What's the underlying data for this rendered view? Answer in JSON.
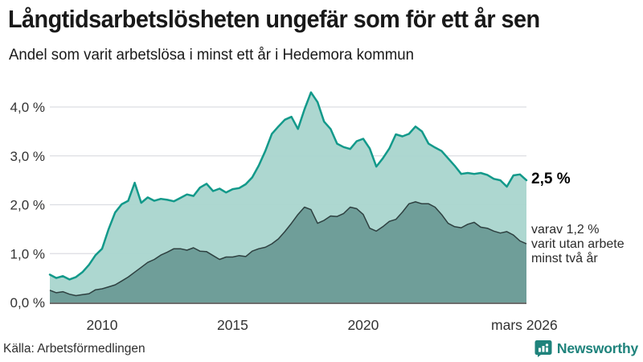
{
  "title": "Långtidsarbetslösheten ungefär som för ett år sen",
  "subtitle": "Andel som varit arbetslösa i minst ett år i Hedemora kommun",
  "source": "Källa: Arbetsförmedlingen",
  "branding": {
    "name": "Newsworthy",
    "icon": "newsworthy-bar-chart-bubble-icon",
    "color": "#1f837c"
  },
  "annotations": {
    "latest_total": "2,5 %",
    "secondary_lines": [
      "varav 1,2 %",
      "varit utan arbete",
      "minst två år"
    ]
  },
  "colors": {
    "total_line": "#12998a",
    "total_fill": "#aad5ce",
    "secondary_line": "#2e4040",
    "secondary_fill": "#6f9e99",
    "gridline": "#dcdde2",
    "baseline": "#3c3c3c",
    "axis_text": "#333333",
    "title_text": "#191919"
  },
  "chart_data": {
    "type": "area",
    "title": "Långtidsarbetslösheten ungefär som för ett år sen",
    "subtitle": "Andel som varit arbetslösa i minst ett år i Hedemora kommun",
    "xlabel": "",
    "ylabel": "",
    "x_unit": "decimal_year",
    "xlim": [
      2008.0,
      2026.25
    ],
    "ylim": [
      0,
      4.5
    ],
    "grid": true,
    "legend": "none",
    "x": [
      2008.0,
      2008.25,
      2008.5,
      2008.75,
      2009.0,
      2009.25,
      2009.5,
      2009.75,
      2010.0,
      2010.25,
      2010.5,
      2010.75,
      2011.0,
      2011.25,
      2011.5,
      2011.75,
      2012.0,
      2012.25,
      2012.5,
      2012.75,
      2013.0,
      2013.25,
      2013.5,
      2013.75,
      2014.0,
      2014.25,
      2014.5,
      2014.75,
      2015.0,
      2015.25,
      2015.5,
      2015.75,
      2016.0,
      2016.25,
      2016.5,
      2016.75,
      2017.0,
      2017.25,
      2017.5,
      2017.75,
      2018.0,
      2018.25,
      2018.5,
      2018.75,
      2019.0,
      2019.25,
      2019.5,
      2019.75,
      2020.0,
      2020.25,
      2020.5,
      2020.75,
      2021.0,
      2021.25,
      2021.5,
      2021.75,
      2022.0,
      2022.25,
      2022.5,
      2022.75,
      2023.0,
      2023.25,
      2023.5,
      2023.75,
      2024.0,
      2024.25,
      2024.5,
      2024.75,
      2025.0,
      2025.25,
      2025.5,
      2025.75,
      2026.0,
      2026.25
    ],
    "series": [
      {
        "name": "Andel som varit arbetslösa i minst ett år",
        "latest_label": "2,5 %",
        "values": [
          0.57,
          0.5,
          0.54,
          0.47,
          0.52,
          0.62,
          0.77,
          0.97,
          1.1,
          1.5,
          1.84,
          2.01,
          2.08,
          2.45,
          2.04,
          2.15,
          2.08,
          2.12,
          2.1,
          2.07,
          2.14,
          2.21,
          2.18,
          2.35,
          2.43,
          2.28,
          2.33,
          2.25,
          2.32,
          2.34,
          2.42,
          2.56,
          2.8,
          3.1,
          3.45,
          3.6,
          3.74,
          3.8,
          3.55,
          3.95,
          4.3,
          4.1,
          3.7,
          3.55,
          3.25,
          3.18,
          3.14,
          3.3,
          3.35,
          3.15,
          2.78,
          2.95,
          3.15,
          3.44,
          3.4,
          3.45,
          3.6,
          3.5,
          3.25,
          3.17,
          3.1,
          2.95,
          2.8,
          2.63,
          2.65,
          2.63,
          2.65,
          2.61,
          2.53,
          2.5,
          2.37,
          2.6,
          2.62,
          2.5
        ]
      },
      {
        "name": "varav utan arbete minst två år",
        "latest_label": "varav 1,2 % varit utan arbete minst två år",
        "values": [
          0.25,
          0.2,
          0.22,
          0.17,
          0.14,
          0.16,
          0.18,
          0.26,
          0.28,
          0.32,
          0.36,
          0.44,
          0.52,
          0.62,
          0.72,
          0.82,
          0.88,
          0.97,
          1.03,
          1.1,
          1.1,
          1.07,
          1.12,
          1.05,
          1.04,
          0.96,
          0.88,
          0.93,
          0.93,
          0.96,
          0.94,
          1.05,
          1.1,
          1.13,
          1.2,
          1.3,
          1.45,
          1.62,
          1.8,
          1.95,
          1.9,
          1.62,
          1.68,
          1.77,
          1.76,
          1.82,
          1.95,
          1.92,
          1.8,
          1.52,
          1.46,
          1.55,
          1.66,
          1.7,
          1.85,
          2.02,
          2.06,
          2.02,
          2.02,
          1.95,
          1.8,
          1.62,
          1.55,
          1.53,
          1.6,
          1.64,
          1.54,
          1.52,
          1.46,
          1.42,
          1.45,
          1.38,
          1.26,
          1.2
        ]
      }
    ],
    "yticks": {
      "values": [
        0,
        1,
        2,
        3,
        4
      ],
      "labels": [
        "0,0 %",
        "1,0 %",
        "2,0 %",
        "3,0 %",
        "4,0 %"
      ]
    },
    "xticks": [
      {
        "value": 2010,
        "label": "2010"
      },
      {
        "value": 2015,
        "label": "2015"
      },
      {
        "value": 2020,
        "label": "2020"
      },
      {
        "value": 2026.17,
        "label": "mars 2026"
      }
    ]
  }
}
